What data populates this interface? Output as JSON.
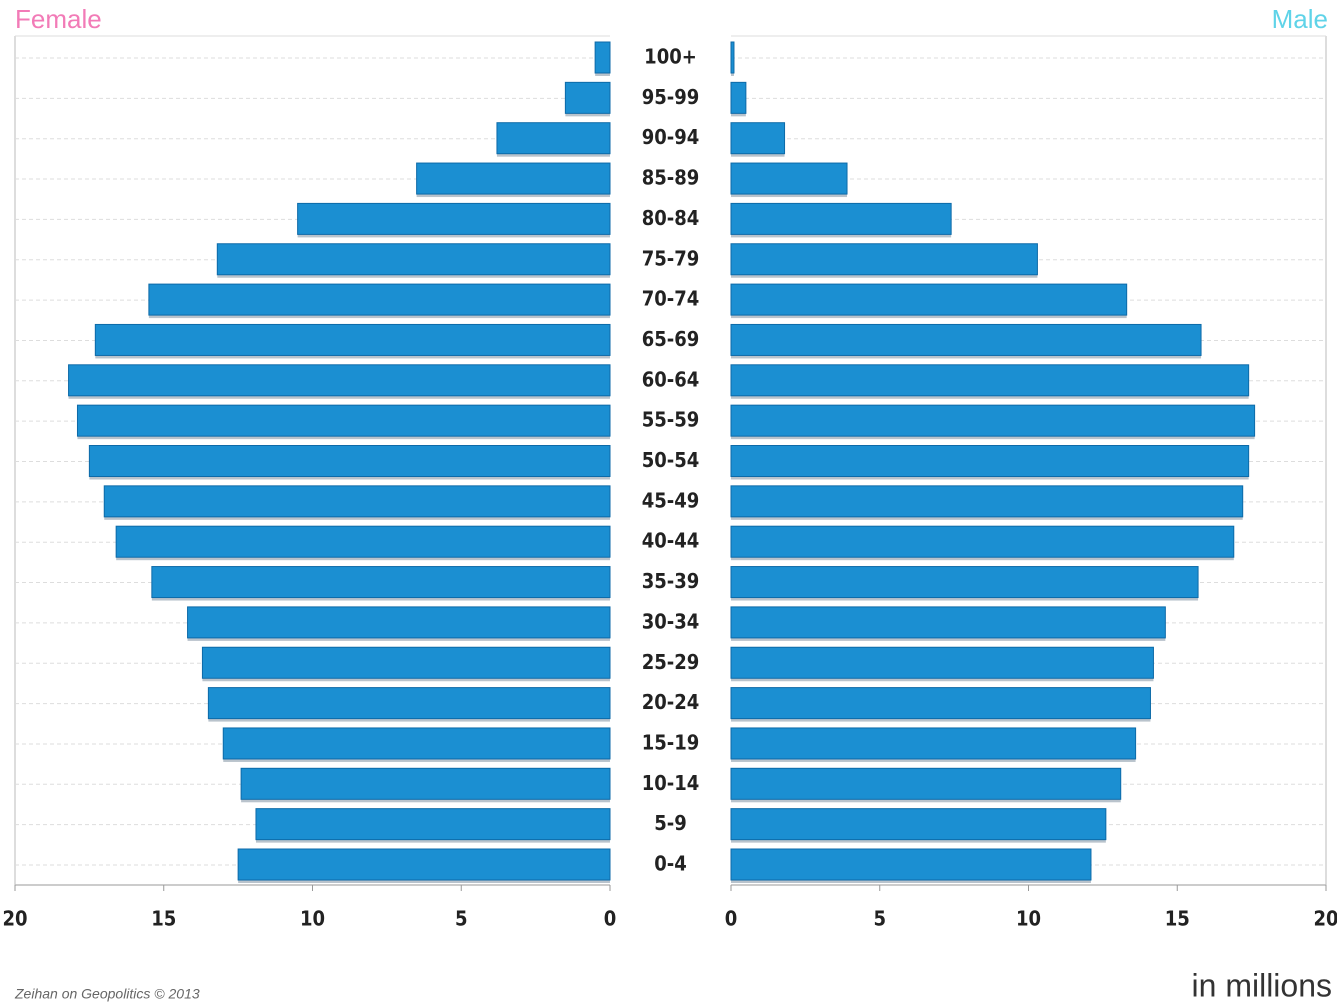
{
  "chart_data": {
    "type": "pyramid",
    "categories": [
      "100+",
      "95-99",
      "90-94",
      "85-89",
      "80-84",
      "75-79",
      "70-74",
      "65-69",
      "60-64",
      "55-59",
      "50-54",
      "45-49",
      "40-44",
      "35-39",
      "30-34",
      "25-29",
      "20-24",
      "15-19",
      "10-14",
      "5-9",
      "0-4"
    ],
    "series": [
      {
        "name": "Female",
        "color": "#f27bb7",
        "values": [
          0.5,
          1.5,
          3.8,
          6.5,
          10.5,
          13.2,
          15.5,
          17.3,
          18.2,
          17.9,
          17.5,
          17.0,
          16.6,
          15.4,
          14.2,
          13.7,
          13.5,
          13.0,
          12.4,
          11.9,
          12.5
        ]
      },
      {
        "name": "Male",
        "color": "#5fd3e8",
        "values": [
          0.1,
          0.5,
          1.8,
          3.9,
          7.4,
          10.3,
          13.3,
          15.8,
          17.4,
          17.6,
          17.4,
          17.2,
          16.9,
          15.7,
          14.6,
          14.2,
          14.1,
          13.6,
          13.1,
          12.6,
          12.1
        ]
      }
    ],
    "bar_color": "#1b8fd2",
    "xlim": [
      0,
      20
    ],
    "xticks": [
      0,
      5,
      10,
      15,
      20
    ],
    "grid": true,
    "x_label": "in millions",
    "source": "Zeihan on Geopolitics © 2013"
  }
}
